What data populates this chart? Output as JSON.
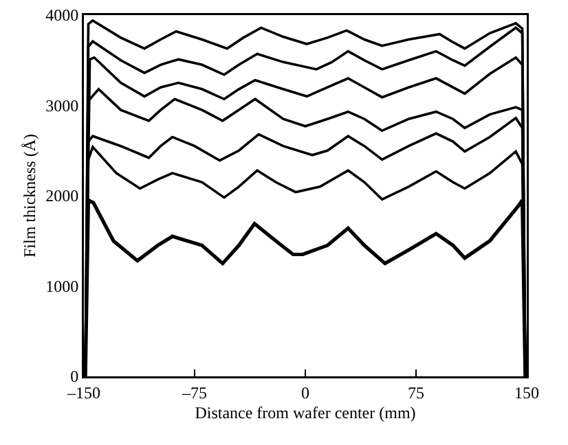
{
  "chart_data": {
    "type": "line",
    "xlabel": "Distance from wafer center (mm)",
    "ylabel": "Film thickness (Å)",
    "xlim": [
      -150,
      150
    ],
    "ylim": [
      0,
      4000
    ],
    "xticks": [
      {
        "value": -150,
        "label": "–150"
      },
      {
        "value": -75,
        "label": "–75"
      },
      0,
      75,
      150
    ],
    "yticks": [
      0,
      1000,
      2000,
      3000,
      4000
    ],
    "grid": false,
    "marker": "none",
    "line_style": "solid",
    "series": [
      {
        "color": "#000000",
        "x": [
          -149,
          -147,
          -143.5,
          -130,
          -113.7,
          -100,
          -90,
          -70,
          -56,
          -45,
          -34.4,
          -20,
          -8.3,
          -1.8,
          15,
          29,
          40,
          54,
          70,
          88.6,
          100,
          108,
          125,
          144.5,
          147,
          149
        ],
        "values": [
          0,
          1950,
          1920,
          1500,
          1280,
          1450,
          1550,
          1450,
          1250,
          1450,
          1690,
          1500,
          1350,
          1350,
          1450,
          1640,
          1450,
          1250,
          1400,
          1580,
          1450,
          1310,
          1500,
          1890,
          1950,
          0
        ]
      },
      {
        "color": "#000000",
        "x": [
          -149,
          -147,
          -144,
          -128,
          -112,
          -100,
          -90,
          -70,
          -55,
          -45,
          -32.6,
          -20,
          -6.5,
          10,
          29,
          40,
          52,
          70,
          88.6,
          100,
          108,
          125,
          142.6,
          147,
          149
        ],
        "values": [
          0,
          2400,
          2540,
          2250,
          2080,
          2180,
          2250,
          2150,
          1980,
          2100,
          2280,
          2150,
          2040,
          2100,
          2280,
          2150,
          1960,
          2100,
          2270,
          2150,
          2080,
          2250,
          2490,
          2350,
          0
        ]
      },
      {
        "color": "#000000",
        "x": [
          -149,
          -147,
          -144,
          -125,
          -106,
          -98,
          -90,
          -75,
          -58,
          -45,
          -31.6,
          -15,
          4.7,
          15,
          29,
          40,
          52,
          70,
          88.6,
          100,
          108,
          125,
          142.6,
          147,
          149
        ],
        "values": [
          0,
          2600,
          2660,
          2550,
          2420,
          2550,
          2650,
          2550,
          2390,
          2500,
          2680,
          2550,
          2450,
          2500,
          2660,
          2550,
          2400,
          2550,
          2690,
          2600,
          2490,
          2650,
          2860,
          2750,
          0
        ]
      },
      {
        "color": "#000000",
        "x": [
          -149,
          -147,
          -140,
          -125,
          -106,
          -98,
          -88.5,
          -70,
          -56,
          -45,
          -34,
          -15,
          0,
          15,
          29,
          40,
          52,
          70,
          88.6,
          100,
          108,
          125,
          142.6,
          147,
          149
        ],
        "values": [
          0,
          3050,
          3180,
          2950,
          2830,
          2950,
          3070,
          2950,
          2830,
          2950,
          3070,
          2850,
          2770,
          2850,
          2930,
          2850,
          2720,
          2850,
          2930,
          2850,
          2750,
          2900,
          2980,
          2950,
          0
        ]
      },
      {
        "color": "#000000",
        "x": [
          -149,
          -146,
          -143,
          -125,
          -109,
          -98,
          -86,
          -70,
          -55,
          -45,
          -34,
          -15,
          1,
          15,
          29,
          40,
          52,
          70,
          88.6,
          100,
          108,
          125,
          142.6,
          147,
          149
        ],
        "values": [
          0,
          3510,
          3530,
          3250,
          3100,
          3200,
          3250,
          3180,
          3070,
          3180,
          3280,
          3180,
          3100,
          3200,
          3300,
          3200,
          3090,
          3200,
          3300,
          3200,
          3130,
          3350,
          3530,
          3450,
          0
        ]
      },
      {
        "color": "#000000",
        "x": [
          -149,
          -147,
          -144,
          -125,
          -109,
          -98,
          -86,
          -70,
          -55,
          -45,
          -32.6,
          -15,
          7.5,
          18,
          29,
          40,
          52,
          70,
          88.6,
          100,
          108,
          125,
          142.6,
          147,
          149
        ],
        "values": [
          0,
          3650,
          3710,
          3500,
          3360,
          3450,
          3510,
          3450,
          3340,
          3450,
          3570,
          3480,
          3400,
          3480,
          3600,
          3500,
          3400,
          3500,
          3600,
          3500,
          3440,
          3650,
          3860,
          3800,
          0
        ]
      },
      {
        "color": "#000000",
        "x": [
          -149,
          -147,
          -144,
          -125,
          -109,
          -98,
          -87.5,
          -70,
          -53,
          -42,
          -30,
          -15,
          1,
          15,
          28,
          40,
          52,
          70,
          91,
          100,
          108,
          125,
          142.6,
          147,
          149
        ],
        "values": [
          0,
          3900,
          3940,
          3750,
          3630,
          3730,
          3820,
          3730,
          3630,
          3750,
          3860,
          3760,
          3680,
          3750,
          3830,
          3730,
          3660,
          3730,
          3790,
          3700,
          3630,
          3800,
          3910,
          3850,
          0
        ]
      }
    ]
  }
}
